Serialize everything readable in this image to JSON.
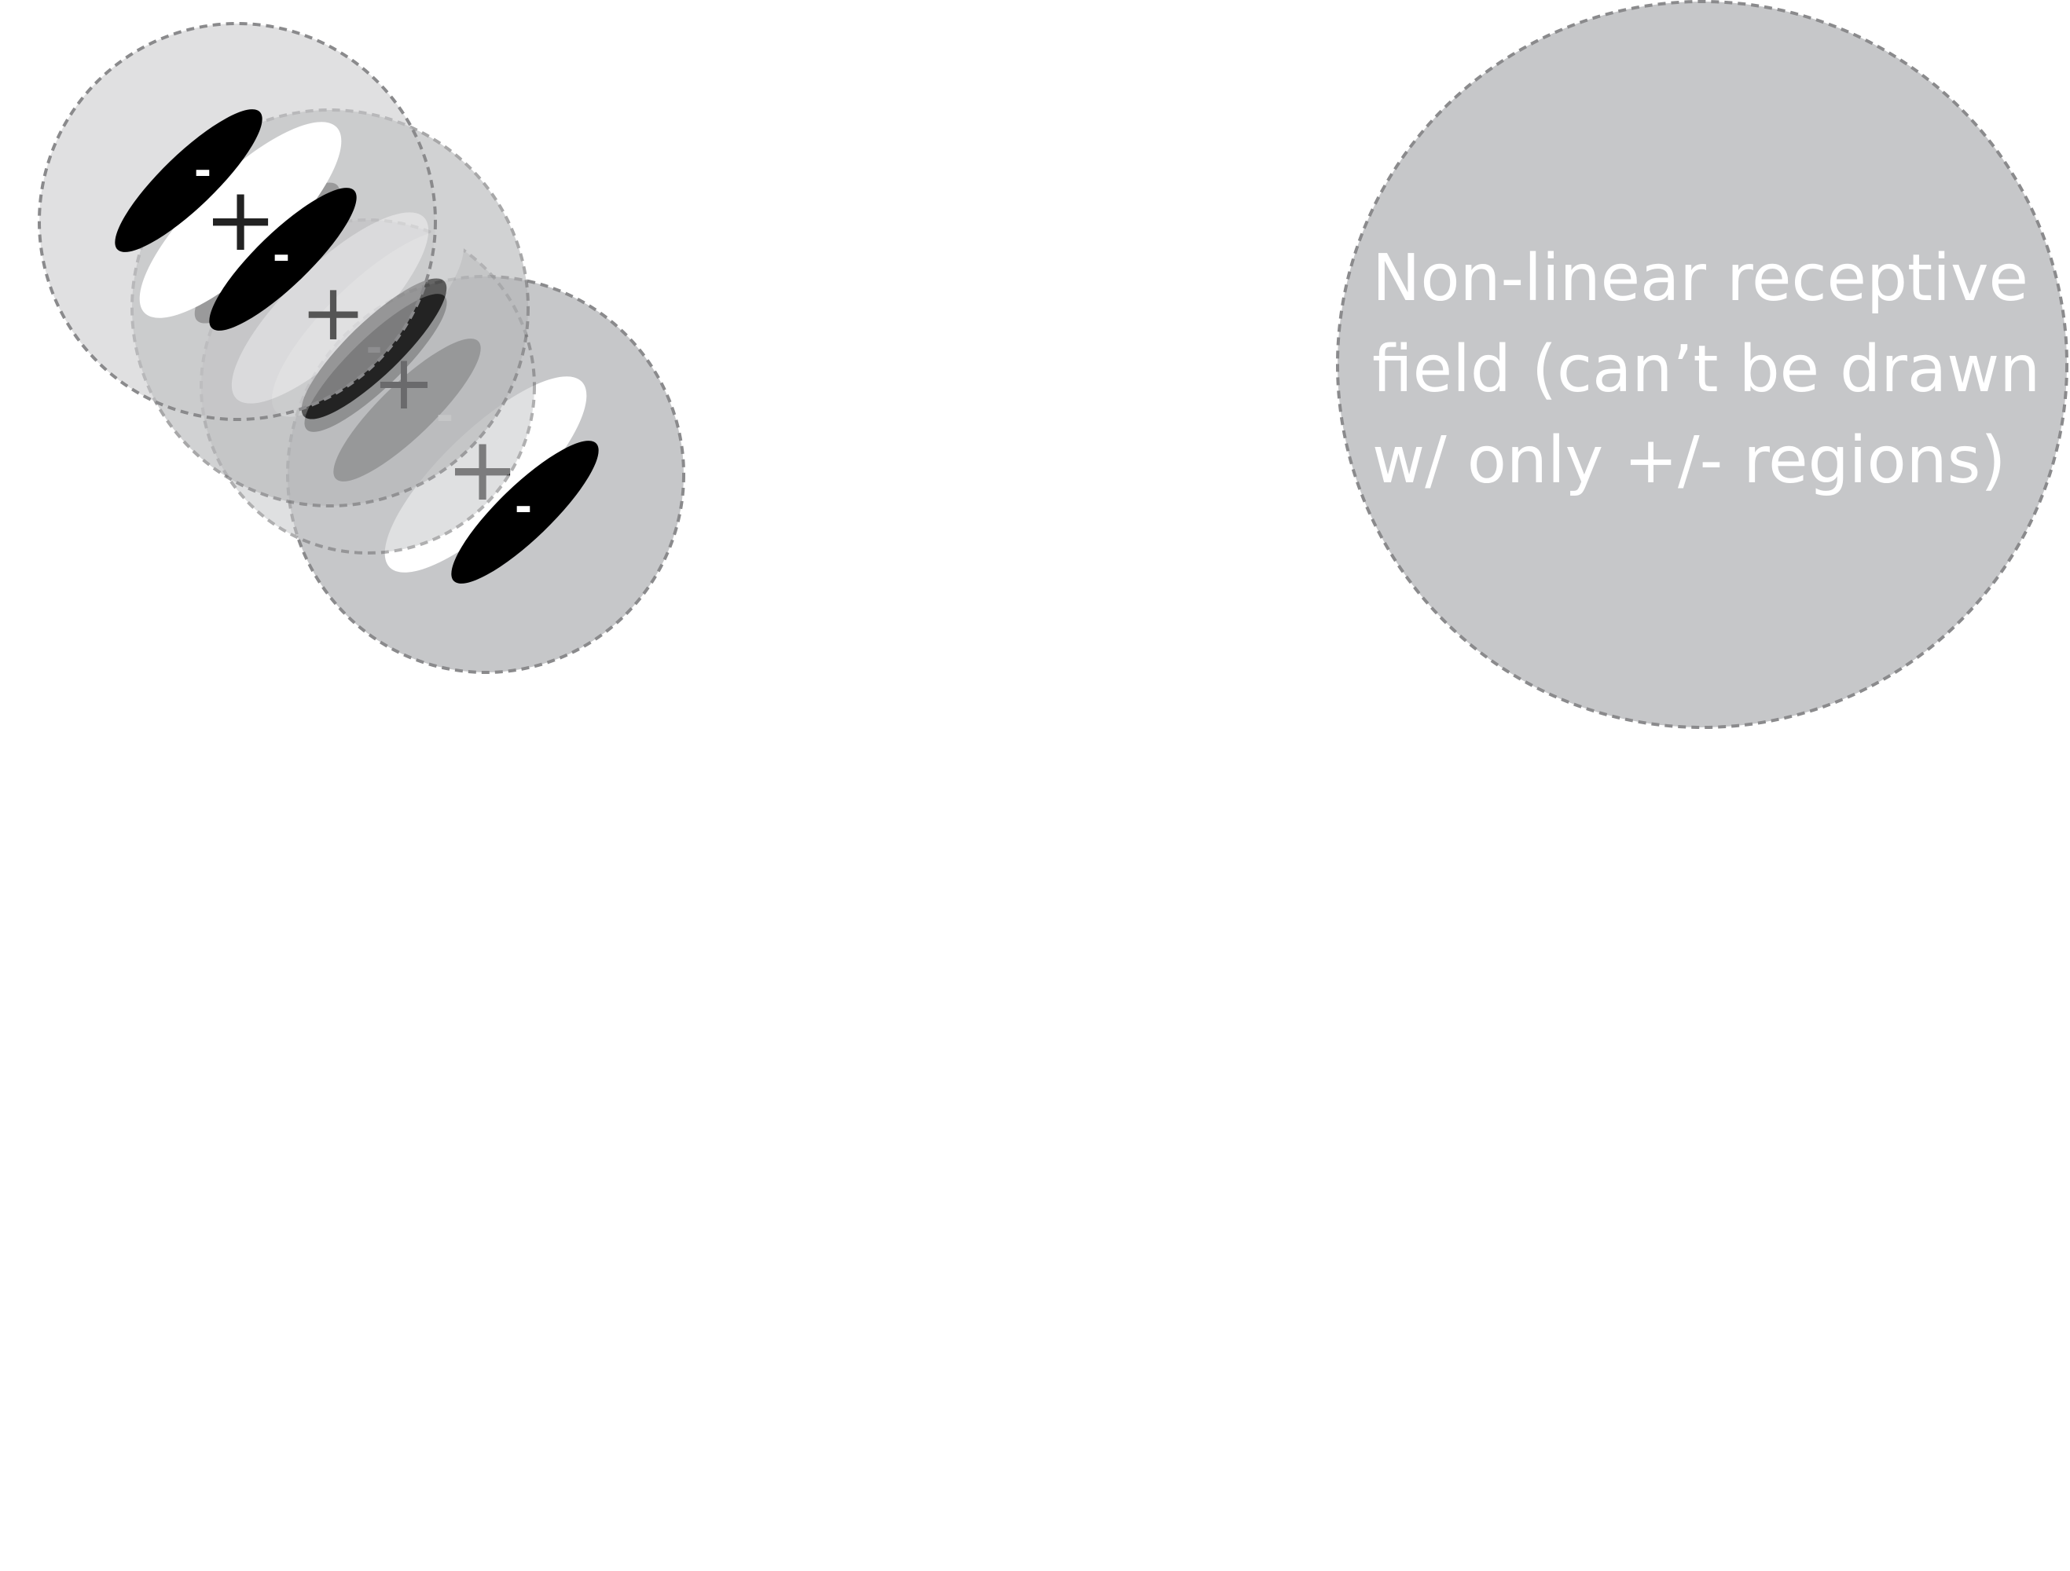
{
  "diagram": {
    "signs": {
      "minus": "-",
      "plus": "+"
    },
    "caption": {
      "line1": "Non-linear receptive",
      "line2": "field (can’t be drawn",
      "line3": "w/ only +/- regions)"
    },
    "colors": {
      "field_fill": "#c6c7c9",
      "field_stroke": "#8a8a8c",
      "excitatory": "#ffffff",
      "inhibitory": "#000000",
      "plus_sign": "#222222"
    }
  }
}
